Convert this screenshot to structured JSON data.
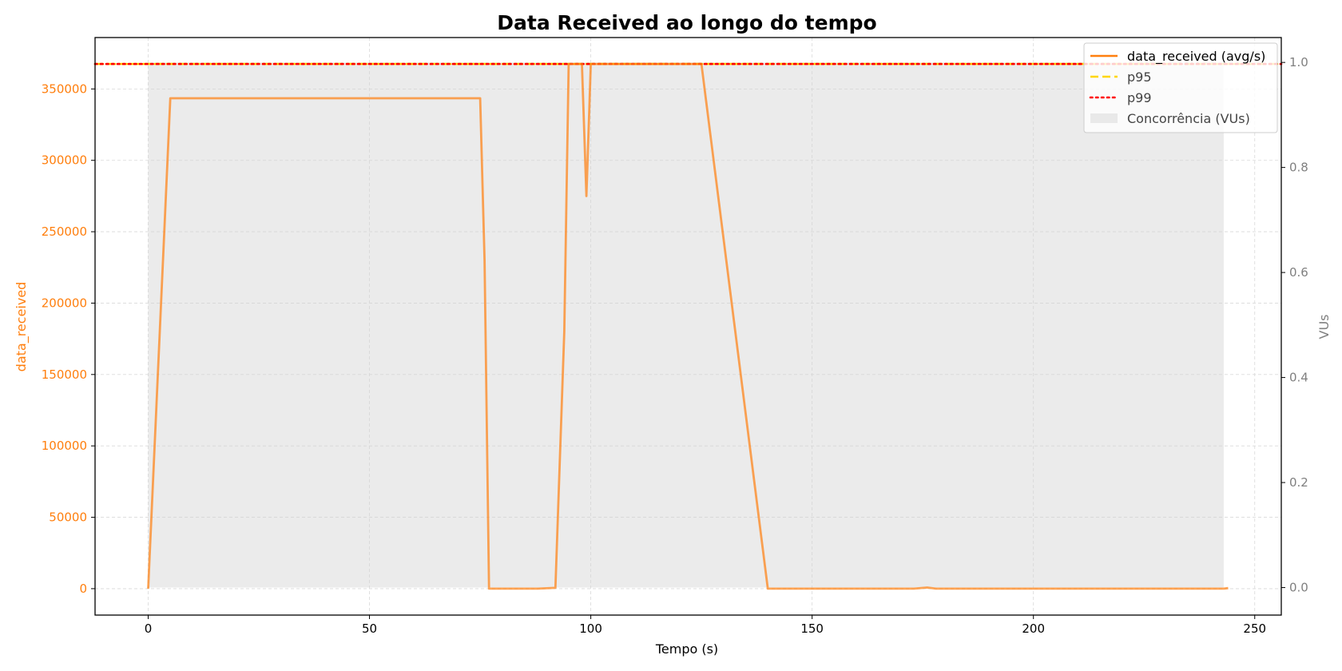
{
  "chart_data": {
    "type": "line",
    "title": "Data Received ao longo do tempo",
    "xlabel": "Tempo (s)",
    "ylabel": "data_received",
    "y2label": "VUs",
    "xlim": [
      -12,
      256
    ],
    "ylim": [
      -18500,
      386000
    ],
    "y2lim": [
      -0.0524,
      1.0474
    ],
    "xticks": [
      0,
      50,
      100,
      150,
      200,
      250
    ],
    "yticks": [
      0,
      50000,
      100000,
      150000,
      200000,
      250000,
      300000,
      350000
    ],
    "y2ticks": [
      0.0,
      0.2,
      0.4,
      0.6,
      0.8,
      1.0
    ],
    "grid": true,
    "legend_position": "top-right",
    "legend": [
      "data_received (avg/s)",
      "p95",
      "p99",
      "Concorrência (VUs)"
    ],
    "series": [
      {
        "name": "data_received (avg/s)",
        "axis": "left",
        "color": "#ff7f0e",
        "x": [
          0,
          5,
          75,
          76,
          77,
          88,
          92,
          94,
          95,
          97,
          98,
          99,
          100,
          101,
          125,
          140,
          173,
          176,
          178,
          243,
          244
        ],
        "y": [
          0,
          343500,
          343500,
          230000,
          0,
          0,
          600,
          180000,
          367500,
          367500,
          367500,
          275000,
          367500,
          367500,
          367500,
          0,
          0,
          800,
          0,
          0,
          400
        ]
      },
      {
        "name": "p95",
        "axis": "left",
        "color": "#ffd700",
        "style": "dashed",
        "value": 367500
      },
      {
        "name": "p99",
        "axis": "left",
        "color": "#ff0000",
        "style": "dotted",
        "value": 367500
      },
      {
        "name": "Concorrência (VUs)",
        "axis": "right",
        "type": "area",
        "color": "#d3d3d3",
        "x": [
          0,
          243
        ],
        "y": [
          1,
          1
        ]
      }
    ],
    "colors": {
      "left_axis": "#ff7f0e",
      "right_axis": "#808080",
      "grid": "#d9d9d9"
    }
  }
}
